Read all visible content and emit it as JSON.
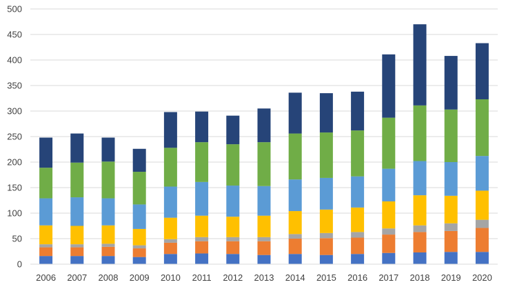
{
  "chart_data": {
    "type": "bar",
    "stacked": true,
    "title": "",
    "xlabel": "",
    "ylabel": "",
    "ylim": [
      0,
      500
    ],
    "yticks": [
      0,
      50,
      100,
      150,
      200,
      250,
      300,
      350,
      400,
      450,
      500
    ],
    "grid": true,
    "legend": "none",
    "categories": [
      "2006",
      "2007",
      "2008",
      "2009",
      "2010",
      "2011",
      "2012",
      "2013",
      "2014",
      "2015",
      "2016",
      "2017",
      "2018",
      "2019",
      "2020"
    ],
    "series": [
      {
        "color": "#4472C4",
        "values": [
          16,
          16,
          16,
          14,
          20,
          21,
          20,
          18,
          20,
          18,
          20,
          22,
          23,
          24,
          24
        ]
      },
      {
        "color": "#ED7D31",
        "values": [
          17,
          17,
          18,
          17,
          22,
          24,
          25,
          27,
          30,
          33,
          32,
          36,
          40,
          41,
          47
        ]
      },
      {
        "color": "#A5A5A5",
        "values": [
          6,
          6,
          6,
          6,
          7,
          8,
          8,
          8,
          9,
          10,
          11,
          12,
          13,
          15,
          16
        ]
      },
      {
        "color": "#FFC000",
        "values": [
          37,
          36,
          36,
          32,
          42,
          42,
          40,
          42,
          45,
          46,
          48,
          53,
          59,
          54,
          57
        ]
      },
      {
        "color": "#5B9BD5",
        "values": [
          53,
          56,
          53,
          48,
          61,
          66,
          61,
          58,
          62,
          62,
          61,
          64,
          67,
          66,
          68
        ]
      },
      {
        "color": "#70AD47",
        "values": [
          60,
          68,
          72,
          64,
          76,
          78,
          81,
          86,
          90,
          89,
          90,
          100,
          109,
          103,
          111
        ]
      },
      {
        "color": "#264478",
        "values": [
          59,
          57,
          47,
          45,
          70,
          60,
          56,
          66,
          80,
          77,
          76,
          124,
          159,
          105,
          110
        ]
      }
    ],
    "totals": [
      248,
      256,
      248,
      226,
      298,
      299,
      291,
      305,
      336,
      335,
      338,
      411,
      470,
      408,
      433
    ]
  }
}
